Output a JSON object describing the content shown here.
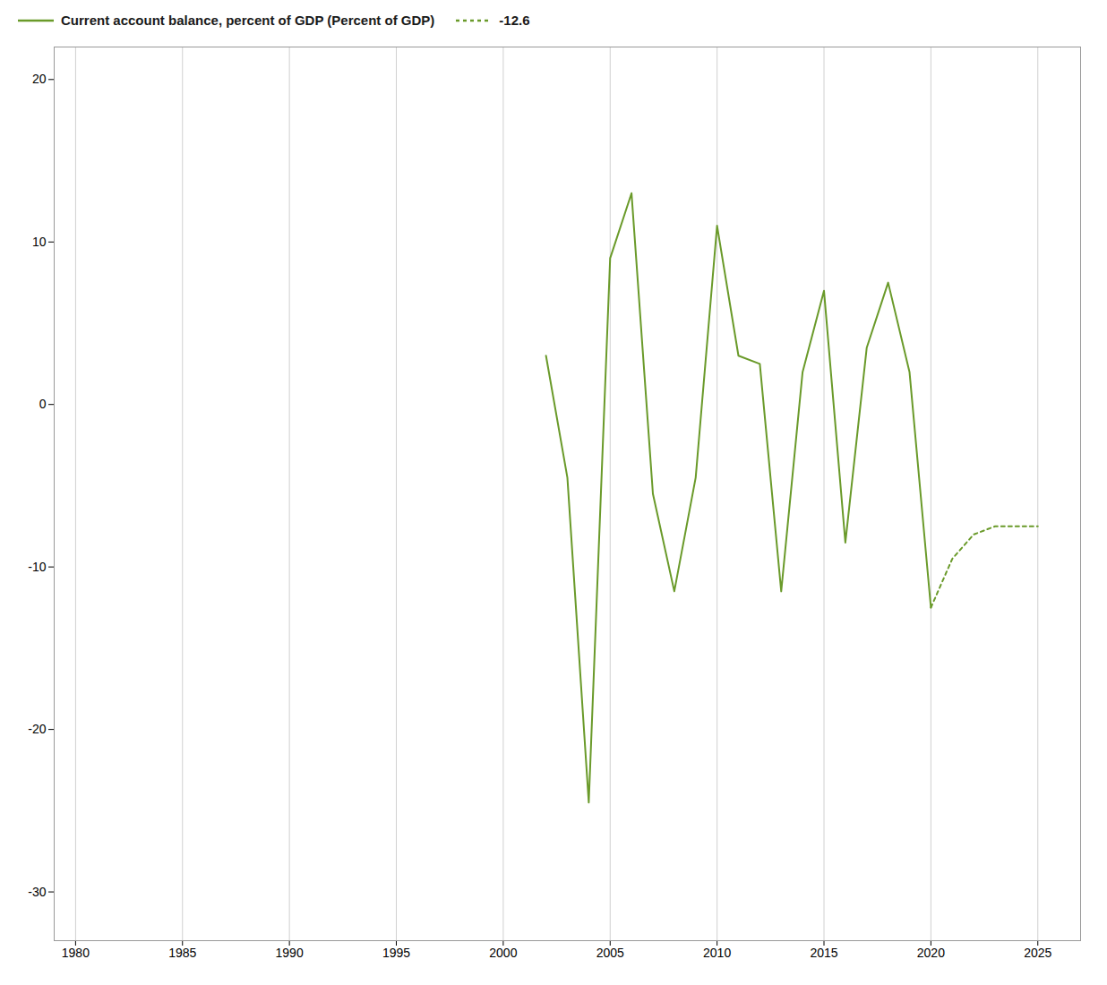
{
  "chart_data": {
    "type": "line",
    "series": [
      {
        "name": "Current account balance, percent of GDP (Percent of GDP)",
        "color": "#6a9a2a",
        "line_style": "solid",
        "x": [
          2002,
          2003,
          2004,
          2005,
          2006,
          2007,
          2008,
          2009,
          2010,
          2011,
          2012,
          2013,
          2014,
          2015,
          2016,
          2017,
          2018,
          2019,
          2020
        ],
        "values": [
          3.0,
          -4.5,
          -24.5,
          9.0,
          13.0,
          -5.5,
          -11.5,
          -4.5,
          11.0,
          3.0,
          2.5,
          -11.5,
          2.0,
          7.0,
          -8.5,
          3.5,
          7.5,
          2.0,
          -12.5
        ]
      },
      {
        "name": "-12.6",
        "color": "#6a9a2a",
        "line_style": "dotted",
        "x": [
          2020,
          2021,
          2022,
          2023,
          2024,
          2025
        ],
        "values": [
          -12.5,
          -9.5,
          -8.0,
          -7.5,
          -7.5,
          -7.5
        ]
      }
    ],
    "xlim": [
      1979,
      2027
    ],
    "xticks": [
      1980,
      1985,
      1990,
      1995,
      2000,
      2005,
      2010,
      2015,
      2020,
      2025
    ],
    "ylim": [
      -33,
      22
    ],
    "yticks": [
      20,
      10,
      0,
      -10,
      -20,
      -30
    ],
    "grid": "x",
    "legend": "upper left"
  }
}
